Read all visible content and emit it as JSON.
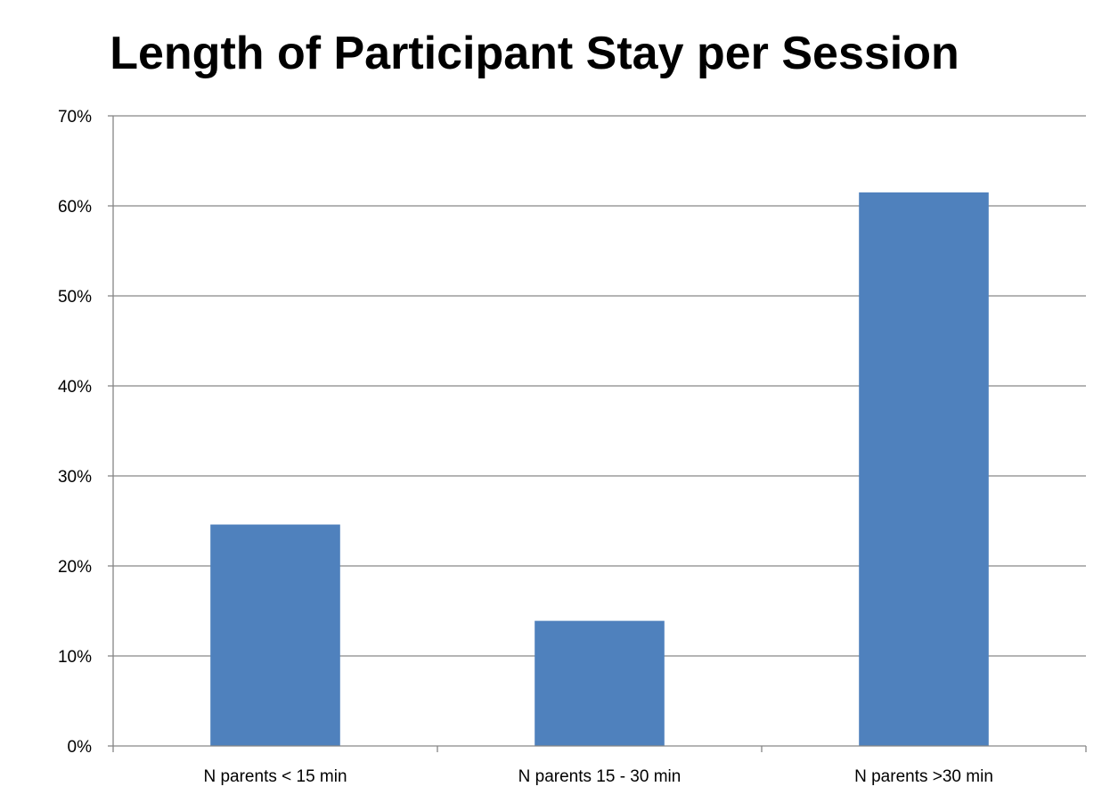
{
  "chart_data": {
    "type": "bar",
    "title": "Length of Participant Stay per Session",
    "categories": [
      "N parents < 15 min",
      "N parents 15 - 30 min",
      "N parents >30 min"
    ],
    "values": [
      24.6,
      13.9,
      61.5
    ],
    "ylim": [
      0,
      70
    ],
    "yticks": [
      "0%",
      "10%",
      "20%",
      "30%",
      "40%",
      "50%",
      "60%",
      "70%"
    ],
    "grid": true,
    "legend": "none",
    "bar_color": "#4F81BD"
  }
}
